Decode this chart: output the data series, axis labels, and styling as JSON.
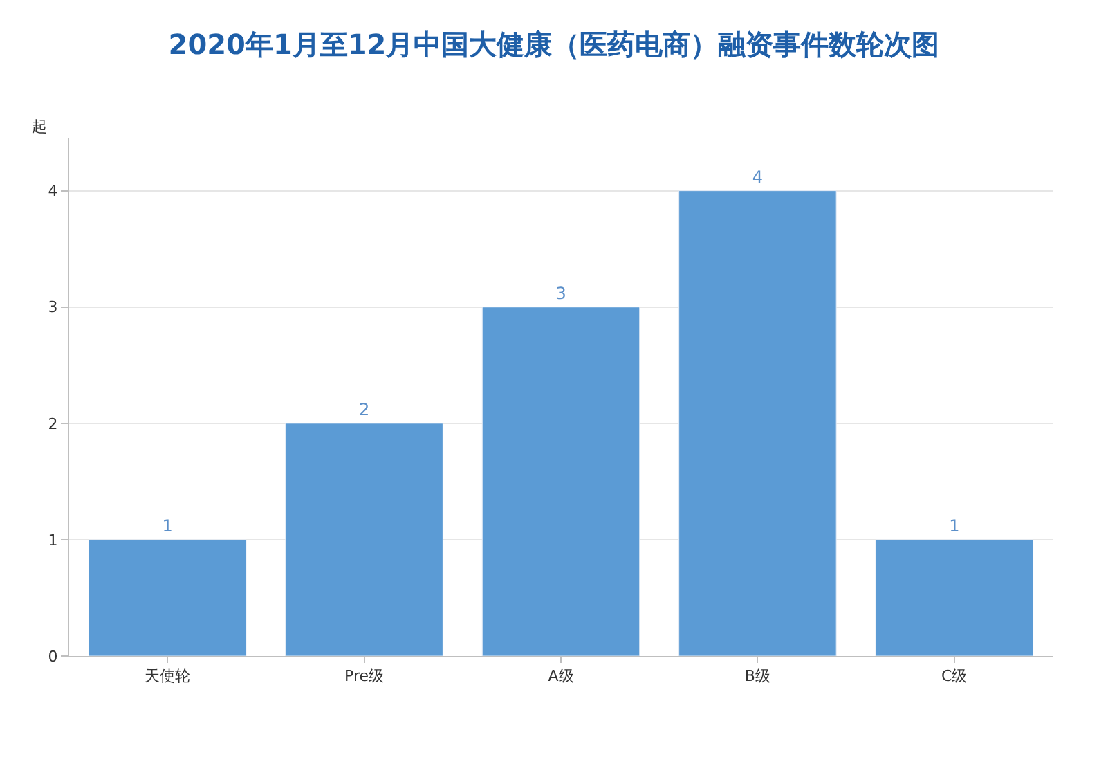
{
  "chart_data": {
    "type": "bar",
    "title": "2020年1月至12月中国大健康（医药电商）融资事件数轮次图",
    "ylabel": "起",
    "categories": [
      "天使轮",
      "Pre级",
      "A级",
      "B级",
      "C级"
    ],
    "values": [
      1,
      2,
      3,
      4,
      1
    ],
    "color": "#5b9bd5",
    "ylim": [
      0,
      4.45
    ],
    "yticks": [
      0,
      1,
      2,
      3,
      4
    ],
    "grid": "y",
    "data_labels": true
  }
}
